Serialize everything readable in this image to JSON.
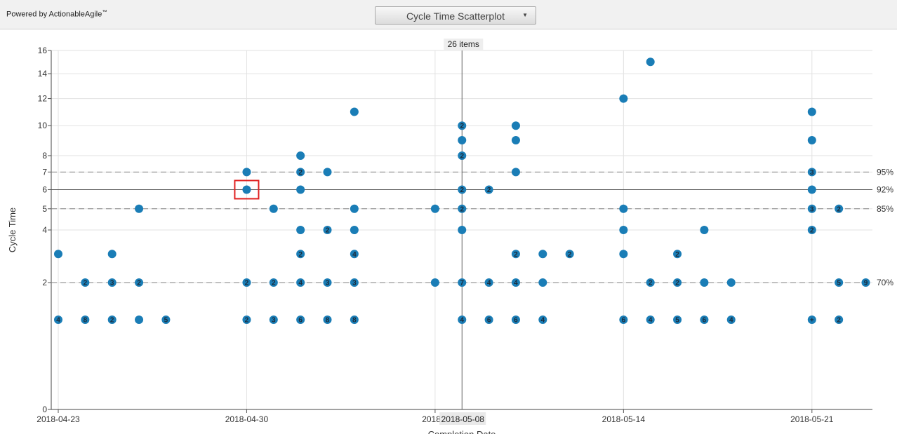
{
  "header": {
    "powered_by": "Powered by ActionableAgile",
    "trademark": "™",
    "view_selector": "Cycle Time Scatterplot",
    "view_selector_caret": "▼"
  },
  "colors": {
    "dot": "#1a7db6",
    "dot_label": "#1b2b3a",
    "grid": "#e2e2e2",
    "percentile_line": "#808080",
    "crosshair": "#606060",
    "highlight": "#e02020"
  },
  "chart_data": {
    "type": "scatter",
    "ylabel": "Cycle Time",
    "xlabel": "Completion Date",
    "y_ticks": [
      0,
      2,
      4,
      5,
      6,
      7,
      8,
      10,
      12,
      14,
      16
    ],
    "y_scale": "sqrt",
    "ylim": [
      0,
      16
    ],
    "x_range": [
      "2018-04-23",
      "2018-05-24"
    ],
    "x_ticks": [
      "2018-04-23",
      "2018-04-30",
      "2018-05-07",
      "2018-05-14",
      "2018-05-21"
    ],
    "x_tick_labels": [
      "2018-04-23",
      "2018-04-30",
      "2018-0",
      "2018-05-14",
      "2018-05-21"
    ],
    "grid": true,
    "percentile_lines": [
      {
        "label": "95%",
        "value": 7,
        "style": "dashed"
      },
      {
        "label": "92%",
        "value": 6,
        "style": "solid"
      },
      {
        "label": "85%",
        "value": 5,
        "style": "dashed"
      },
      {
        "label": "70%",
        "value": 2,
        "style": "dashed"
      }
    ],
    "crosshair": {
      "date": "2018-05-08",
      "cycle_time": 6,
      "date_label": "2018-05-08",
      "count_label": "26 items"
    },
    "highlighted_point": {
      "date": "2018-04-30",
      "cycle_time": 6
    },
    "points": [
      {
        "date": "2018-04-23",
        "y": 1,
        "count": "4"
      },
      {
        "date": "2018-04-23",
        "y": 3,
        "count": ""
      },
      {
        "date": "2018-04-24",
        "y": 1,
        "count": "8"
      },
      {
        "date": "2018-04-24",
        "y": 2,
        "count": "2"
      },
      {
        "date": "2018-04-25",
        "y": 1,
        "count": "2"
      },
      {
        "date": "2018-04-25",
        "y": 2,
        "count": "3"
      },
      {
        "date": "2018-04-25",
        "y": 3,
        "count": ""
      },
      {
        "date": "2018-04-26",
        "y": 1,
        "count": ""
      },
      {
        "date": "2018-04-26",
        "y": 2,
        "count": "2"
      },
      {
        "date": "2018-04-26",
        "y": 5,
        "count": ""
      },
      {
        "date": "2018-04-27",
        "y": 1,
        "count": "5"
      },
      {
        "date": "2018-04-30",
        "y": 1,
        "count": "2"
      },
      {
        "date": "2018-04-30",
        "y": 2,
        "count": "2"
      },
      {
        "date": "2018-04-30",
        "y": 6,
        "count": ""
      },
      {
        "date": "2018-04-30",
        "y": 7,
        "count": ""
      },
      {
        "date": "2018-05-01",
        "y": 1,
        "count": "3"
      },
      {
        "date": "2018-05-01",
        "y": 2,
        "count": "2"
      },
      {
        "date": "2018-05-01",
        "y": 5,
        "count": ""
      },
      {
        "date": "2018-05-02",
        "y": 1,
        "count": "6"
      },
      {
        "date": "2018-05-02",
        "y": 2,
        "count": "4"
      },
      {
        "date": "2018-05-02",
        "y": 3,
        "count": "2"
      },
      {
        "date": "2018-05-02",
        "y": 4,
        "count": ""
      },
      {
        "date": "2018-05-02",
        "y": 6,
        "count": ""
      },
      {
        "date": "2018-05-02",
        "y": 7,
        "count": "2"
      },
      {
        "date": "2018-05-02",
        "y": 8,
        "count": ""
      },
      {
        "date": "2018-05-03",
        "y": 1,
        "count": "8"
      },
      {
        "date": "2018-05-03",
        "y": 2,
        "count": "3"
      },
      {
        "date": "2018-05-03",
        "y": 4,
        "count": "2"
      },
      {
        "date": "2018-05-03",
        "y": 7,
        "count": ""
      },
      {
        "date": "2018-05-04",
        "y": 1,
        "count": "8"
      },
      {
        "date": "2018-05-04",
        "y": 2,
        "count": "3"
      },
      {
        "date": "2018-05-04",
        "y": 3,
        "count": "4"
      },
      {
        "date": "2018-05-04",
        "y": 4,
        "count": ""
      },
      {
        "date": "2018-05-04",
        "y": 5,
        "count": ""
      },
      {
        "date": "2018-05-04",
        "y": 11,
        "count": ""
      },
      {
        "date": "2018-05-07",
        "y": 2,
        "count": ""
      },
      {
        "date": "2018-05-07",
        "y": 5,
        "count": ""
      },
      {
        "date": "2018-05-08",
        "y": 1,
        "count": "4"
      },
      {
        "date": "2018-05-08",
        "y": 2,
        "count": "7"
      },
      {
        "date": "2018-05-08",
        "y": 4,
        "count": ""
      },
      {
        "date": "2018-05-08",
        "y": 5,
        "count": "2"
      },
      {
        "date": "2018-05-08",
        "y": 6,
        "count": "2"
      },
      {
        "date": "2018-05-08",
        "y": 8,
        "count": "2"
      },
      {
        "date": "2018-05-08",
        "y": 9,
        "count": ""
      },
      {
        "date": "2018-05-08",
        "y": 10,
        "count": "2"
      },
      {
        "date": "2018-05-09",
        "y": 1,
        "count": "6"
      },
      {
        "date": "2018-05-09",
        "y": 2,
        "count": "4"
      },
      {
        "date": "2018-05-09",
        "y": 6,
        "count": "2"
      },
      {
        "date": "2018-05-10",
        "y": 1,
        "count": "6"
      },
      {
        "date": "2018-05-10",
        "y": 2,
        "count": "4"
      },
      {
        "date": "2018-05-10",
        "y": 3,
        "count": "2"
      },
      {
        "date": "2018-05-10",
        "y": 7,
        "count": ""
      },
      {
        "date": "2018-05-10",
        "y": 9,
        "count": ""
      },
      {
        "date": "2018-05-10",
        "y": 10,
        "count": ""
      },
      {
        "date": "2018-05-11",
        "y": 1,
        "count": "4"
      },
      {
        "date": "2018-05-11",
        "y": 2,
        "count": ""
      },
      {
        "date": "2018-05-11",
        "y": 3,
        "count": ""
      },
      {
        "date": "2018-05-12",
        "y": 3,
        "count": "2"
      },
      {
        "date": "2018-05-14",
        "y": 1,
        "count": "6"
      },
      {
        "date": "2018-05-14",
        "y": 3,
        "count": ""
      },
      {
        "date": "2018-05-14",
        "y": 4,
        "count": ""
      },
      {
        "date": "2018-05-14",
        "y": 5,
        "count": ""
      },
      {
        "date": "2018-05-14",
        "y": 12,
        "count": ""
      },
      {
        "date": "2018-05-15",
        "y": 1,
        "count": "4"
      },
      {
        "date": "2018-05-15",
        "y": 2,
        "count": "2"
      },
      {
        "date": "2018-05-15",
        "y": 15,
        "count": ""
      },
      {
        "date": "2018-05-16",
        "y": 1,
        "count": "5"
      },
      {
        "date": "2018-05-16",
        "y": 2,
        "count": "2"
      },
      {
        "date": "2018-05-16",
        "y": 3,
        "count": "2"
      },
      {
        "date": "2018-05-17",
        "y": 1,
        "count": "6"
      },
      {
        "date": "2018-05-17",
        "y": 2,
        "count": ""
      },
      {
        "date": "2018-05-17",
        "y": 4,
        "count": ""
      },
      {
        "date": "2018-05-18",
        "y": 1,
        "count": "4"
      },
      {
        "date": "2018-05-18",
        "y": 2,
        "count": ""
      },
      {
        "date": "2018-05-21",
        "y": 1,
        "count": "+"
      },
      {
        "date": "2018-05-21",
        "y": 4,
        "count": "2"
      },
      {
        "date": "2018-05-21",
        "y": 5,
        "count": "3"
      },
      {
        "date": "2018-05-21",
        "y": 6,
        "count": ""
      },
      {
        "date": "2018-05-21",
        "y": 7,
        "count": "3"
      },
      {
        "date": "2018-05-21",
        "y": 9,
        "count": ""
      },
      {
        "date": "2018-05-21",
        "y": 11,
        "count": ""
      },
      {
        "date": "2018-05-22",
        "y": 1,
        "count": "2"
      },
      {
        "date": "2018-05-22",
        "y": 2,
        "count": "5"
      },
      {
        "date": "2018-05-22",
        "y": 5,
        "count": "2"
      },
      {
        "date": "2018-05-23",
        "y": 2,
        "count": "9"
      }
    ]
  }
}
